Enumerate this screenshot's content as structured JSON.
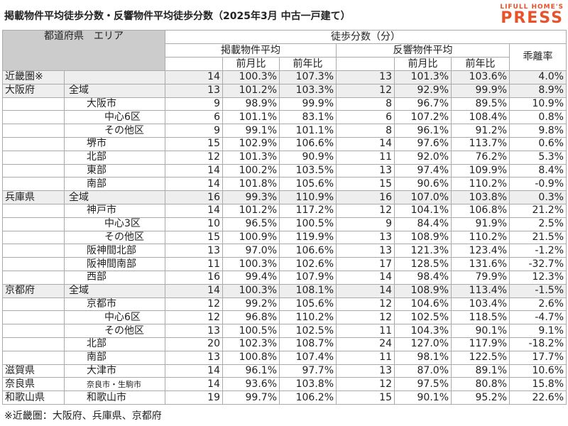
{
  "title": "掲載物件平均徒歩分数・反響物件平均徒歩分数（2025年3月 中古一戸建て）",
  "logo": {
    "top": "LIFULL HOME'S",
    "bottom": "PRESS"
  },
  "header": {
    "region": "都道府県　エリア",
    "walk": "徒歩分数（分）",
    "listing": "掲載物件平均",
    "listing_cols": [
      "前月比",
      "前年比"
    ],
    "response": "反響物件平均",
    "response_cols": [
      "前月比",
      "前年比"
    ],
    "divergence": "乖離率"
  },
  "rows": [
    {
      "pref": "近畿圏※",
      "values": [
        "14",
        "100.3%",
        "107.3%",
        "13",
        "101.3%",
        "103.6%",
        "4.0%"
      ]
    },
    {
      "pref": "大阪府",
      "area": "全域",
      "values": [
        "13",
        "101.2%",
        "103.3%",
        "12",
        "92.9%",
        "99.9%",
        "8.9%"
      ]
    },
    {
      "area": "大阪市",
      "values": [
        "9",
        "98.9%",
        "99.9%",
        "8",
        "96.7%",
        "89.5%",
        "10.9%"
      ]
    },
    {
      "area": "中心6区",
      "values": [
        "6",
        "101.1%",
        "83.1%",
        "6",
        "107.2%",
        "108.4%",
        "0.8%"
      ]
    },
    {
      "area": "その他区",
      "values": [
        "9",
        "99.1%",
        "101.1%",
        "8",
        "96.1%",
        "91.2%",
        "9.8%"
      ]
    },
    {
      "area": "堺市",
      "values": [
        "15",
        "102.9%",
        "106.6%",
        "14",
        "97.6%",
        "113.7%",
        "0.6%"
      ]
    },
    {
      "area": "北部",
      "values": [
        "12",
        "101.3%",
        "90.9%",
        "11",
        "92.0%",
        "76.2%",
        "5.3%"
      ]
    },
    {
      "area": "東部",
      "values": [
        "14",
        "100.2%",
        "103.5%",
        "13",
        "97.4%",
        "109.9%",
        "8.4%"
      ]
    },
    {
      "area": "南部",
      "values": [
        "14",
        "101.8%",
        "105.6%",
        "15",
        "90.6%",
        "110.2%",
        "-0.9%"
      ]
    },
    {
      "pref": "兵庫県",
      "area": "全域",
      "values": [
        "16",
        "99.3%",
        "110.9%",
        "16",
        "107.0%",
        "103.8%",
        "0.3%"
      ]
    },
    {
      "area": "神戸市",
      "values": [
        "14",
        "101.2%",
        "117.2%",
        "12",
        "104.1%",
        "106.8%",
        "21.2%"
      ]
    },
    {
      "area": "中心3区",
      "values": [
        "10",
        "96.5%",
        "100.5%",
        "9",
        "84.4%",
        "91.9%",
        "2.5%"
      ]
    },
    {
      "area": "その他区",
      "values": [
        "15",
        "100.9%",
        "119.9%",
        "13",
        "108.9%",
        "110.2%",
        "21.5%"
      ]
    },
    {
      "area": "阪神間北部",
      "values": [
        "13",
        "97.0%",
        "106.6%",
        "13",
        "121.3%",
        "123.4%",
        "-1.2%"
      ]
    },
    {
      "area": "阪神間南部",
      "values": [
        "11",
        "100.3%",
        "102.6%",
        "17",
        "128.5%",
        "131.6%",
        "-32.7%"
      ]
    },
    {
      "area": "西部",
      "values": [
        "16",
        "99.4%",
        "107.9%",
        "14",
        "98.4%",
        "79.9%",
        "12.3%"
      ]
    },
    {
      "pref": "京都府",
      "area": "全域",
      "values": [
        "14",
        "100.3%",
        "108.1%",
        "14",
        "108.9%",
        "113.4%",
        "-1.5%"
      ]
    },
    {
      "area": "京都市",
      "values": [
        "12",
        "99.2%",
        "105.6%",
        "12",
        "104.6%",
        "103.4%",
        "2.6%"
      ]
    },
    {
      "area": "中心6区",
      "values": [
        "12",
        "96.8%",
        "110.2%",
        "12",
        "102.5%",
        "118.5%",
        "-4.7%"
      ]
    },
    {
      "area": "その他区",
      "values": [
        "13",
        "100.5%",
        "102.5%",
        "11",
        "104.3%",
        "90.1%",
        "9.1%"
      ]
    },
    {
      "area": "北部",
      "values": [
        "20",
        "102.3%",
        "108.7%",
        "24",
        "127.0%",
        "117.9%",
        "-18.2%"
      ]
    },
    {
      "area": "南部",
      "values": [
        "13",
        "100.8%",
        "107.4%",
        "11",
        "98.1%",
        "122.5%",
        "17.7%"
      ]
    },
    {
      "pref": "滋賀県",
      "area": "大津市",
      "values": [
        "14",
        "96.1%",
        "97.7%",
        "13",
        "87.0%",
        "89.1%",
        "10.6%"
      ]
    },
    {
      "pref": "奈良県",
      "area": "奈良市・生駒市",
      "values": [
        "14",
        "93.6%",
        "103.8%",
        "12",
        "97.5%",
        "80.8%",
        "15.8%"
      ]
    },
    {
      "pref": "和歌山県",
      "area": "和歌山市",
      "values": [
        "19",
        "99.7%",
        "106.2%",
        "15",
        "90.1%",
        "95.2%",
        "22.6%"
      ]
    }
  ],
  "footnote": "※近畿圏：大阪府、兵庫県、京都府"
}
